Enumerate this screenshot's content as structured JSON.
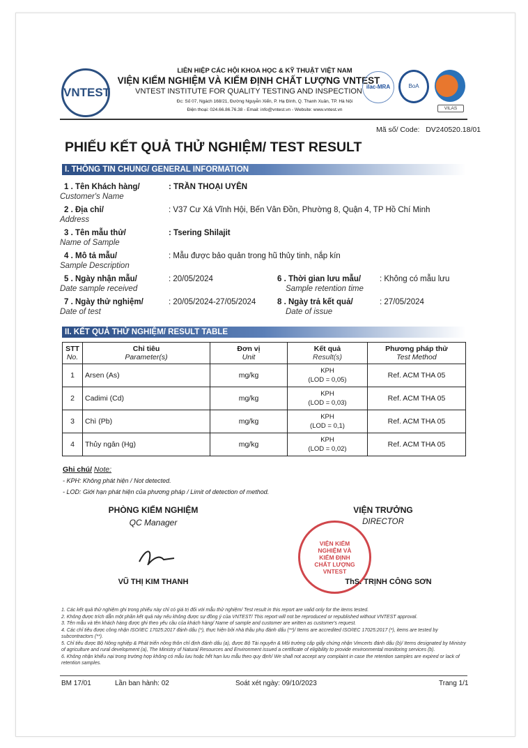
{
  "header": {
    "federation": "LIÊN HIỆP CÁC HỘI KHOA HỌC & KỸ THUẬT VIỆT NAM",
    "institute_vi": "VIỆN KIỂM NGHIỆM VÀ KIỂM ĐỊNH CHẤT LƯỢNG VNTEST",
    "institute_en": "VNTEST INSTITUTE FOR QUALITY TESTING AND INSPECTION",
    "address": "Đc: Số 07, Ngách 168/21, Đường Nguyễn Xiển, P. Hạ Đình, Q. Thanh Xuân, TP. Hà Nội",
    "contact": "Điện thoại: 024.66.86.76.38 - Email: info@vntest.vn - Website: www.vntest.vn",
    "logo_text": "VNTEST",
    "accreditation_logos": [
      "ilac-MRA",
      "BoA",
      "VILAS"
    ]
  },
  "code_label": "Mã số/ Code:",
  "code": "DV240520.18/01",
  "title": "PHIẾU KẾT QUẢ THỬ NGHIỆM/ TEST RESULT",
  "section1": "I. THÔNG TIN CHUNG/ GENERAL INFORMATION",
  "info": [
    {
      "n": "1 .",
      "vi": "Tên Khách hàng/",
      "en": "Customer's Name",
      "value": ": TRẦN THOẠI UYÊN"
    },
    {
      "n": "2 .",
      "vi": "Địa chỉ/",
      "en": "Address",
      "value": ": V37 Cư Xá Vĩnh Hội, Bến Vân Đồn, Phường 8, Quận 4, TP Hồ Chí Minh"
    },
    {
      "n": "3 .",
      "vi": "Tên mẫu thử/",
      "en": "Name of Sample",
      "value": ": Tsering Shilajit"
    },
    {
      "n": "4 .",
      "vi": "Mô tả mẫu/",
      "en": "Sample Description",
      "value": ": Mẫu được bảo quản trong hũ thủy tinh, nắp kín"
    },
    {
      "n": "5 .",
      "vi": "Ngày nhận mẫu/",
      "en": "Date sample received",
      "value": ": 20/05/2024"
    },
    {
      "n": "7 .",
      "vi": "Ngày thử nghiệm/",
      "en": "Date of test",
      "value": ": 20/05/2024-27/05/2024"
    }
  ],
  "info_right": [
    {
      "n": "6 .",
      "vi": "Thời gian lưu mẫu/",
      "en": "Sample retention time",
      "value": ": Không có mẫu lưu"
    },
    {
      "n": "8 .",
      "vi": "Ngày trả kết quả/",
      "en": "Date of issue",
      "value": ": 27/05/2024"
    }
  ],
  "section2": "II. KẾT QUẢ THỬ NGHIỆM/ RESULT TABLE",
  "table": {
    "headers": [
      {
        "vi": "STT",
        "en": "No."
      },
      {
        "vi": "Chỉ tiêu",
        "en": "Parameter(s)"
      },
      {
        "vi": "Đơn vị",
        "en": "Unit"
      },
      {
        "vi": "Kết quả",
        "en": "Result(s)"
      },
      {
        "vi": "Phương pháp thử",
        "en": "Test Method"
      }
    ],
    "rows": [
      {
        "no": "1",
        "param": "Arsen (As)",
        "unit": "mg/kg",
        "result": "KPH",
        "lod": "(LOD = 0,05)",
        "method": "Ref. ACM THA 05"
      },
      {
        "no": "2",
        "param": "Cadimi (Cd)",
        "unit": "mg/kg",
        "result": "KPH",
        "lod": "(LOD = 0,03)",
        "method": "Ref. ACM THA 05"
      },
      {
        "no": "3",
        "param": "Chì (Pb)",
        "unit": "mg/kg",
        "result": "KPH",
        "lod": "(LOD = 0,1)",
        "method": "Ref. ACM THA 05"
      },
      {
        "no": "4",
        "param": "Thủy ngân (Hg)",
        "unit": "mg/kg",
        "result": "KPH",
        "lod": "(LOD = 0,02)",
        "method": "Ref. ACM THA 05"
      }
    ]
  },
  "notes": {
    "title": "Ghi chú/",
    "title_en": "Note:",
    "items": [
      "- KPH: Không phát hiện / Not detected.",
      "- LOD: Giới hạn phát hiện của phương pháp / Limit of detection of method."
    ]
  },
  "sign": {
    "left_title": "PHÒNG KIỂM NGHIỆM",
    "left_en": "QC Manager",
    "left_name": "VŨ THỊ KIM THANH",
    "right_title": "VIỆN TRƯỞNG",
    "right_en": "DIRECTOR",
    "right_name": "ThS. TRỊNH CÔNG SƠN",
    "stamp": "VIỆN KIỂM NGHIỆM VÀ KIỂM ĐỊNH CHẤT LƯỢNG VNTEST"
  },
  "footnotes": [
    "1. Các kết quả thử nghiệm ghi trong phiếu này chỉ có giá trị đối với mẫu thử nghiệm/ Test result in this report are valid only for the items tested.",
    "2. Không được trích dẫn một phần kết quả này nếu không được sự đồng ý của VNTEST/ This report will not be reproduced or republished without VNTEST approval.",
    "3. Tên mẫu và tên khách hàng được ghi theo yêu cầu của khách hàng/ Name of sample and customer are written as customer's request.",
    "4. Các chỉ tiêu được công nhận ISO/IEC 17025:2017 đánh dấu (*), thực hiện bởi nhà thầu phụ đánh dấu (**)/ Items are accredited ISO/IEC 17025:2017 (*), items are tested by subcontractors (**).",
    "5. Chỉ tiêu được Bộ Nông nghiệp & Phát triển nông thôn chỉ định đánh dấu (a), được Bộ Tài nguyên & Môi trường cấp giấy chứng nhận Vimcerts đánh dấu (b)/ Items designated by Ministry of agriculture and rural development (a), The Ministry of Natural Resources and Environment issued a certificate of eligibility to provide environmental monitoring services (b).",
    "6. Không nhận khiếu nại trong trường hợp không có mẫu lưu hoặc hết hạn lưu mẫu theo quy định/ We shall not accept any complaint in case the retention samples are expired or lack of retention samples."
  ],
  "footer": {
    "form": "BM 17/01",
    "edition": "Lần ban hành: 02",
    "review": "Soát xét ngày: 09/10/2023",
    "page": "Trang 1/1"
  }
}
